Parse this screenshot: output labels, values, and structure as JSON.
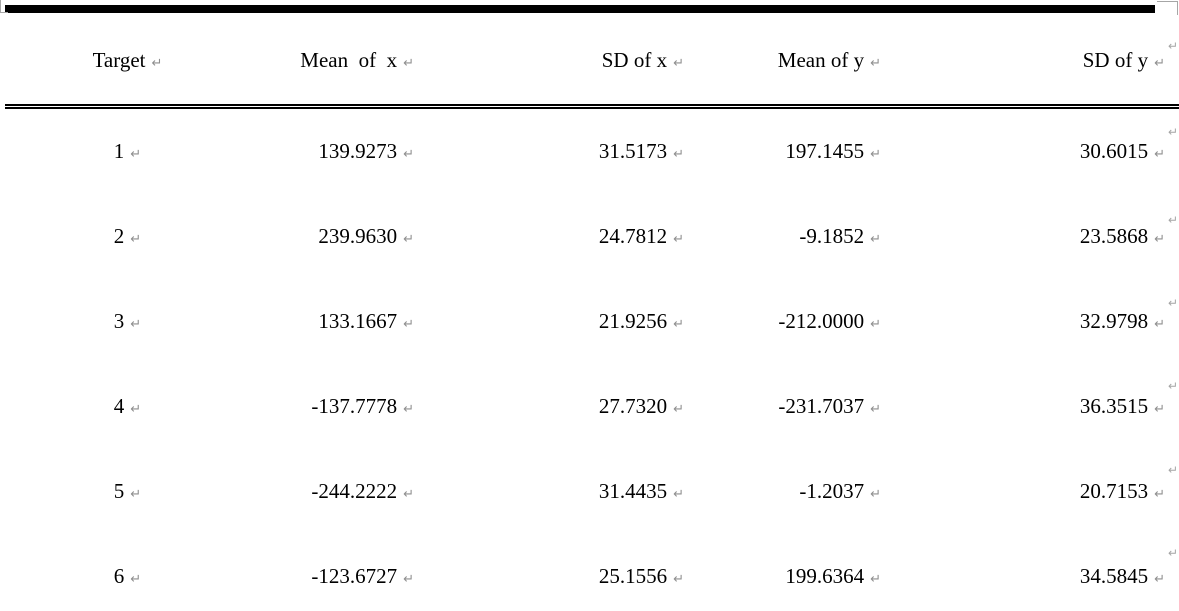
{
  "table": {
    "columns": [
      {
        "key": "target",
        "label": "Target"
      },
      {
        "key": "mean_x",
        "label": "Mean  of  x"
      },
      {
        "key": "sd_x",
        "label": "SD of x"
      },
      {
        "key": "mean_y",
        "label": "Mean of y"
      },
      {
        "key": "sd_y",
        "label": "SD of y"
      }
    ],
    "rows": [
      [
        "1",
        "139.9273",
        "31.5173",
        "197.1455",
        "30.6015"
      ],
      [
        "2",
        "239.9630",
        "24.7812",
        "-9.1852",
        "23.5868"
      ],
      [
        "3",
        "133.1667",
        "21.9256",
        "-212.0000",
        "32.9798"
      ],
      [
        "4",
        "-137.7778",
        "27.7320",
        "-231.7037",
        "36.3515"
      ],
      [
        "5",
        "-244.2222",
        "31.4435",
        "-1.2037",
        "20.7153"
      ],
      [
        "6",
        "-123.6727",
        "25.1556",
        "199.6364",
        "34.5845"
      ]
    ],
    "cell_end_mark": "↵"
  },
  "colors": {
    "text": "#000000",
    "border": "#000000",
    "mark": "#8f8f8f",
    "handle": "#a6a6a6"
  }
}
